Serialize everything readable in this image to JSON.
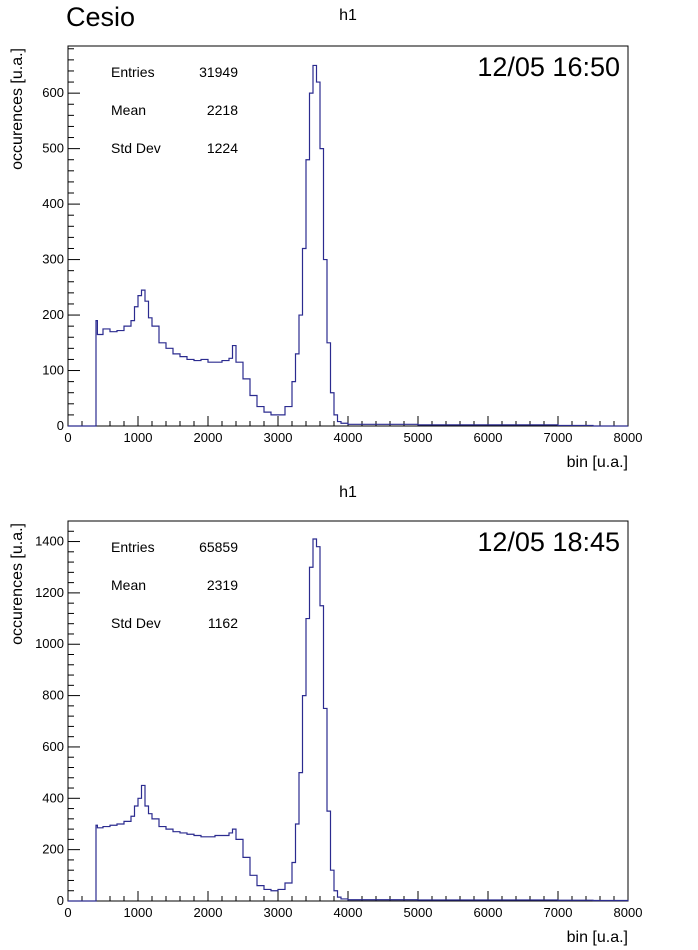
{
  "page_title": "Cesio",
  "chart_data": [
    {
      "type": "line",
      "title": "h1",
      "timestamp": "12/05 16:50",
      "xlabel": "bin [u.a.]",
      "ylabel": "occurences [u.a.]",
      "xlim": [
        0,
        8000
      ],
      "ylim": [
        0,
        685
      ],
      "xticks": [
        0,
        1000,
        2000,
        3000,
        4000,
        5000,
        6000,
        7000,
        8000
      ],
      "yticks": [
        0,
        100,
        200,
        300,
        400,
        500,
        600
      ],
      "stats": [
        {
          "label": "Entries",
          "value": "31949"
        },
        {
          "label": "Mean",
          "value": "2218"
        },
        {
          "label": "Std Dev",
          "value": "1224"
        }
      ],
      "line_color": "#2b2b8f",
      "series": [
        {
          "x": [
            0,
            380,
            400,
            420,
            500,
            600,
            700,
            800,
            900,
            950,
            1000,
            1050,
            1100,
            1150,
            1200,
            1300,
            1400,
            1500,
            1600,
            1700,
            1800,
            1900,
            2000,
            2100,
            2200,
            2300,
            2350,
            2400,
            2500,
            2600,
            2700,
            2800,
            2900,
            3000,
            3100,
            3200,
            3250,
            3300,
            3350,
            3400,
            3450,
            3500,
            3550,
            3600,
            3650,
            3700,
            3750,
            3800,
            3850,
            3900,
            4000,
            5000,
            6000,
            7000,
            7500,
            8000
          ],
          "y": [
            0,
            0,
            190,
            165,
            175,
            170,
            172,
            180,
            190,
            215,
            235,
            245,
            225,
            195,
            180,
            150,
            140,
            130,
            125,
            120,
            118,
            120,
            115,
            115,
            118,
            122,
            145,
            115,
            85,
            55,
            35,
            25,
            20,
            20,
            35,
            80,
            130,
            200,
            320,
            480,
            600,
            650,
            620,
            500,
            300,
            150,
            60,
            20,
            8,
            5,
            3,
            2,
            2,
            1,
            0,
            0
          ]
        }
      ]
    },
    {
      "type": "line",
      "title": "h1",
      "timestamp": "12/05 18:45",
      "xlabel": "bin [u.a.]",
      "ylabel": "occurences [u.a.]",
      "xlim": [
        0,
        8000
      ],
      "ylim": [
        0,
        1480
      ],
      "xticks": [
        0,
        1000,
        2000,
        3000,
        4000,
        5000,
        6000,
        7000,
        8000
      ],
      "yticks": [
        0,
        200,
        400,
        600,
        800,
        1000,
        1200,
        1400
      ],
      "stats": [
        {
          "label": "Entries",
          "value": "65859"
        },
        {
          "label": "Mean",
          "value": "2319"
        },
        {
          "label": "Std Dev",
          "value": "1162"
        }
      ],
      "line_color": "#2b2b8f",
      "series": [
        {
          "x": [
            0,
            380,
            400,
            420,
            500,
            600,
            700,
            800,
            900,
            950,
            1000,
            1050,
            1100,
            1150,
            1200,
            1300,
            1400,
            1500,
            1600,
            1700,
            1800,
            1900,
            2000,
            2100,
            2200,
            2300,
            2350,
            2400,
            2500,
            2600,
            2700,
            2800,
            2900,
            3000,
            3100,
            3200,
            3250,
            3300,
            3350,
            3400,
            3450,
            3500,
            3550,
            3600,
            3650,
            3700,
            3750,
            3800,
            3850,
            3900,
            4000,
            5000,
            6000,
            7000,
            7500,
            8000
          ],
          "y": [
            0,
            0,
            295,
            285,
            290,
            295,
            300,
            310,
            330,
            370,
            400,
            450,
            370,
            340,
            320,
            290,
            280,
            270,
            265,
            260,
            255,
            250,
            250,
            255,
            255,
            265,
            280,
            240,
            170,
            100,
            60,
            45,
            40,
            45,
            70,
            150,
            300,
            500,
            800,
            1100,
            1300,
            1410,
            1380,
            1150,
            750,
            350,
            120,
            40,
            15,
            8,
            5,
            4,
            4,
            3,
            2,
            0
          ]
        }
      ]
    }
  ]
}
